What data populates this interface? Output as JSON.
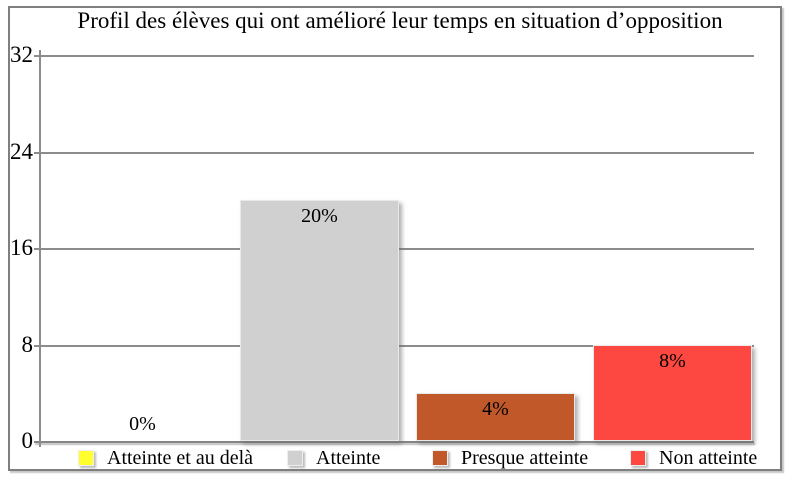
{
  "chart_data": {
    "type": "bar",
    "title": "Profil des élèves qui ont amélioré leur temps en situation d’opposition",
    "categories": [
      "Atteinte et au delà",
      "Atteinte",
      "Presque atteinte",
      "Non atteinte"
    ],
    "values": [
      0,
      20,
      4,
      8
    ],
    "value_labels": [
      "0%",
      "20%",
      "4%",
      "8%"
    ],
    "bar_colors": [
      "#ffff2e",
      "#d0d0d0",
      "#c1582a",
      "#fd4842"
    ],
    "xlabel": "",
    "ylabel": "",
    "ylim": [
      0,
      32
    ],
    "yticks": [
      0,
      8,
      16,
      24,
      32
    ],
    "grid": "horizontal",
    "legend_position": "bottom",
    "gridline_color": "#8c8c8c",
    "frame_color": "#7f7f7f"
  }
}
